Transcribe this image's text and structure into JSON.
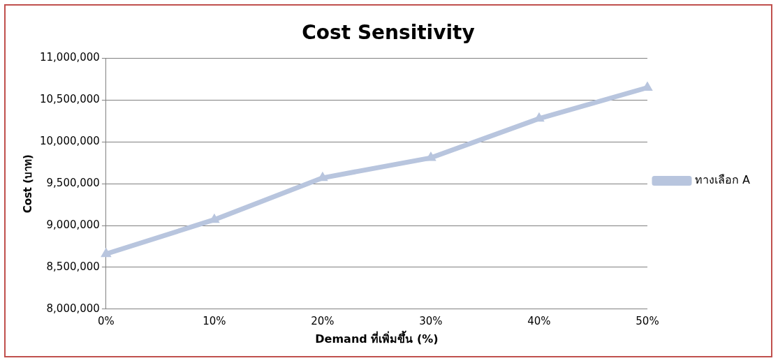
{
  "chart_data": {
    "type": "line",
    "title": "Cost Sensitivity",
    "xlabel": "Demand ที่เพิ่มขึ้น (%)",
    "ylabel": "Cost (บาท)",
    "categories": [
      "0%",
      "10%",
      "20%",
      "30%",
      "40%",
      "50%"
    ],
    "series": [
      {
        "name": "ทางเลือก A",
        "color": "#b8c5de",
        "values": [
          8660000,
          9070000,
          9570000,
          9810000,
          10280000,
          10650000
        ]
      }
    ],
    "ylim": [
      8000000,
      11000000
    ],
    "yticks": [
      {
        "value": 8000000,
        "label": "8,000,000"
      },
      {
        "value": 8500000,
        "label": "8,500,000"
      },
      {
        "value": 9000000,
        "label": "9,000,000"
      },
      {
        "value": 9500000,
        "label": "9,500,000"
      },
      {
        "value": 10000000,
        "label": "10,000,000"
      },
      {
        "value": 10500000,
        "label": "10,500,000"
      },
      {
        "value": 11000000,
        "label": "11,000,000"
      }
    ],
    "grid": "y",
    "legend": "right",
    "marker": "triangle",
    "line_style": "solid"
  }
}
